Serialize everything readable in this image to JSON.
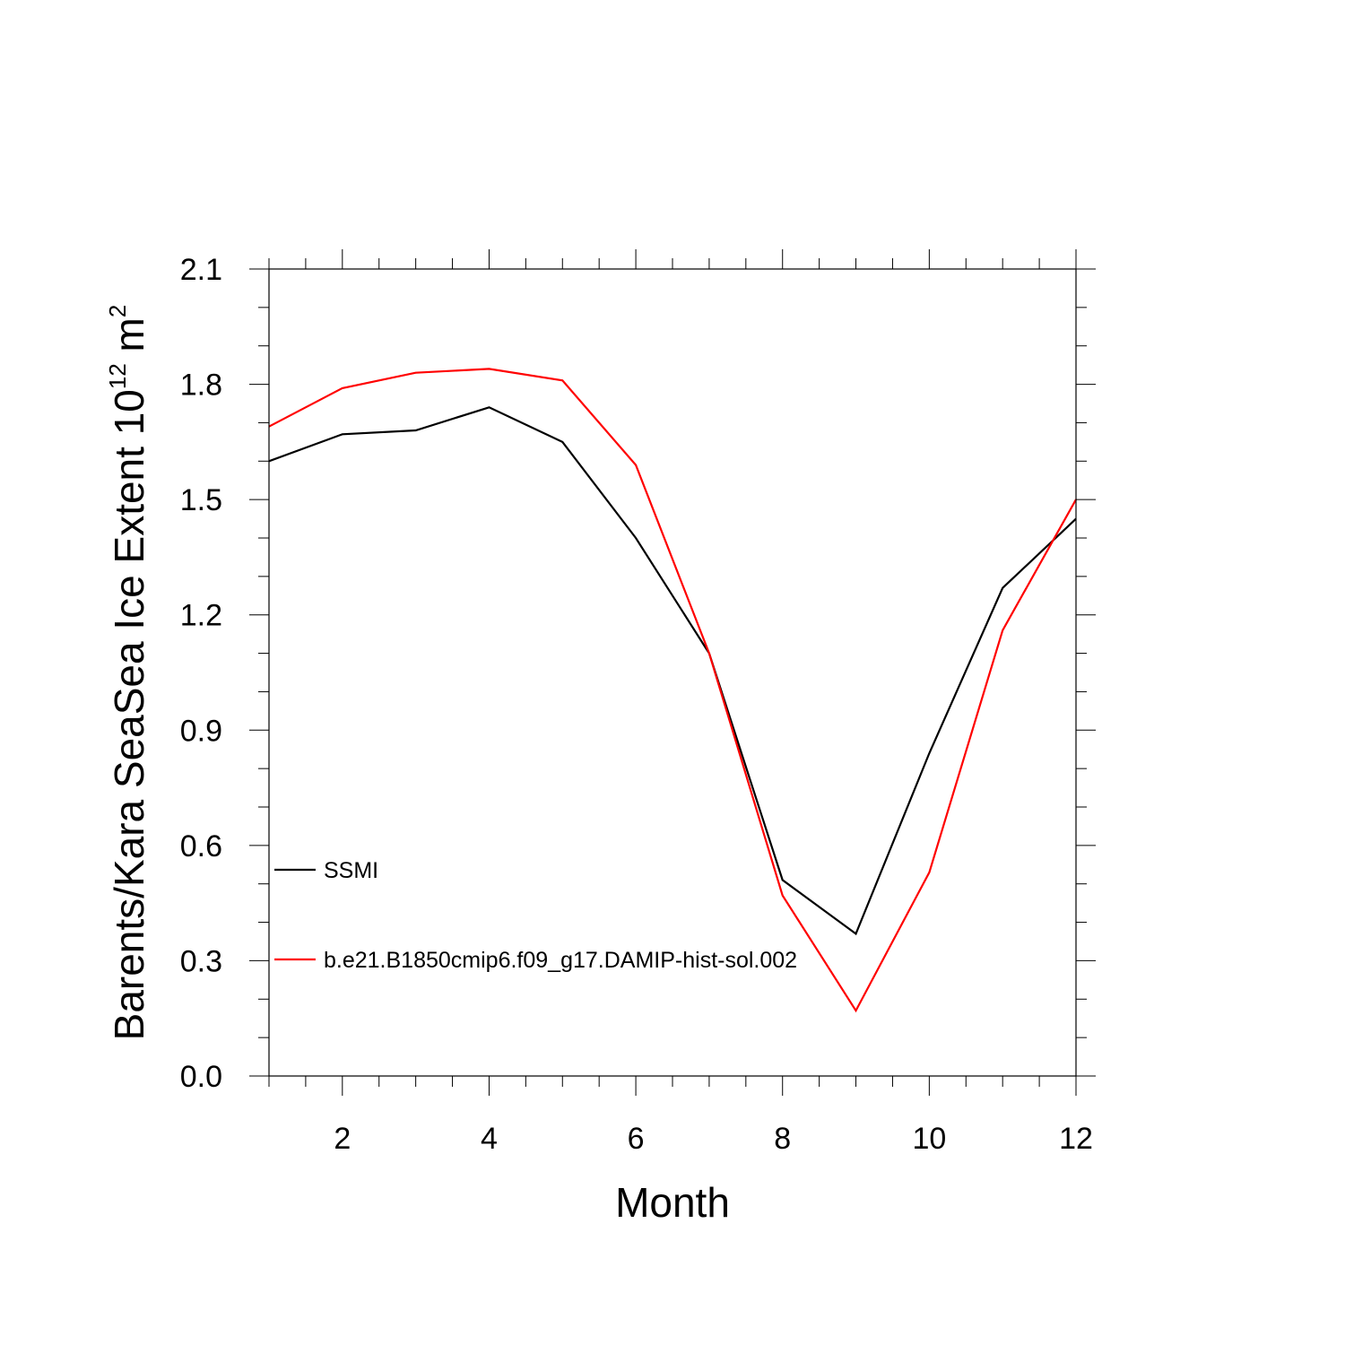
{
  "chart_data": {
    "type": "line",
    "title": "",
    "xlabel": "Month",
    "ylabel_main": "Barents/Kara SeaSea Ice Extent 10",
    "ylabel_exp": "12",
    "ylabel_unit": " m",
    "ylabel_unit_exp": "2",
    "xlim": [
      1,
      12
    ],
    "ylim": [
      0.0,
      2.1
    ],
    "x_ticks": [
      2,
      4,
      6,
      8,
      10,
      12
    ],
    "x_tick_labels": [
      "2",
      "4",
      "6",
      "8",
      "10",
      "12"
    ],
    "y_ticks": [
      0.0,
      0.3,
      0.6,
      0.9,
      1.2,
      1.5,
      1.8,
      2.1
    ],
    "y_tick_labels": [
      "0.0",
      "0.3",
      "0.6",
      "0.9",
      "1.2",
      "1.5",
      "1.8",
      "2.1"
    ],
    "x": [
      1,
      2,
      3,
      4,
      5,
      6,
      7,
      8,
      9,
      10,
      11,
      12
    ],
    "series": [
      {
        "name": "SSMI",
        "color": "#000000",
        "values": [
          1.6,
          1.67,
          1.68,
          1.74,
          1.65,
          1.4,
          1.1,
          0.51,
          0.37,
          0.84,
          1.27,
          1.45
        ]
      },
      {
        "name": "b.e21.B1850cmip6.f09_g17.DAMIP-hist-sol.002",
        "color": "#ff0000",
        "values": [
          1.69,
          1.79,
          1.83,
          1.84,
          1.81,
          1.59,
          1.1,
          0.47,
          0.17,
          0.53,
          1.16,
          1.5
        ]
      }
    ],
    "grid": false,
    "legend_position": "lower-left"
  }
}
